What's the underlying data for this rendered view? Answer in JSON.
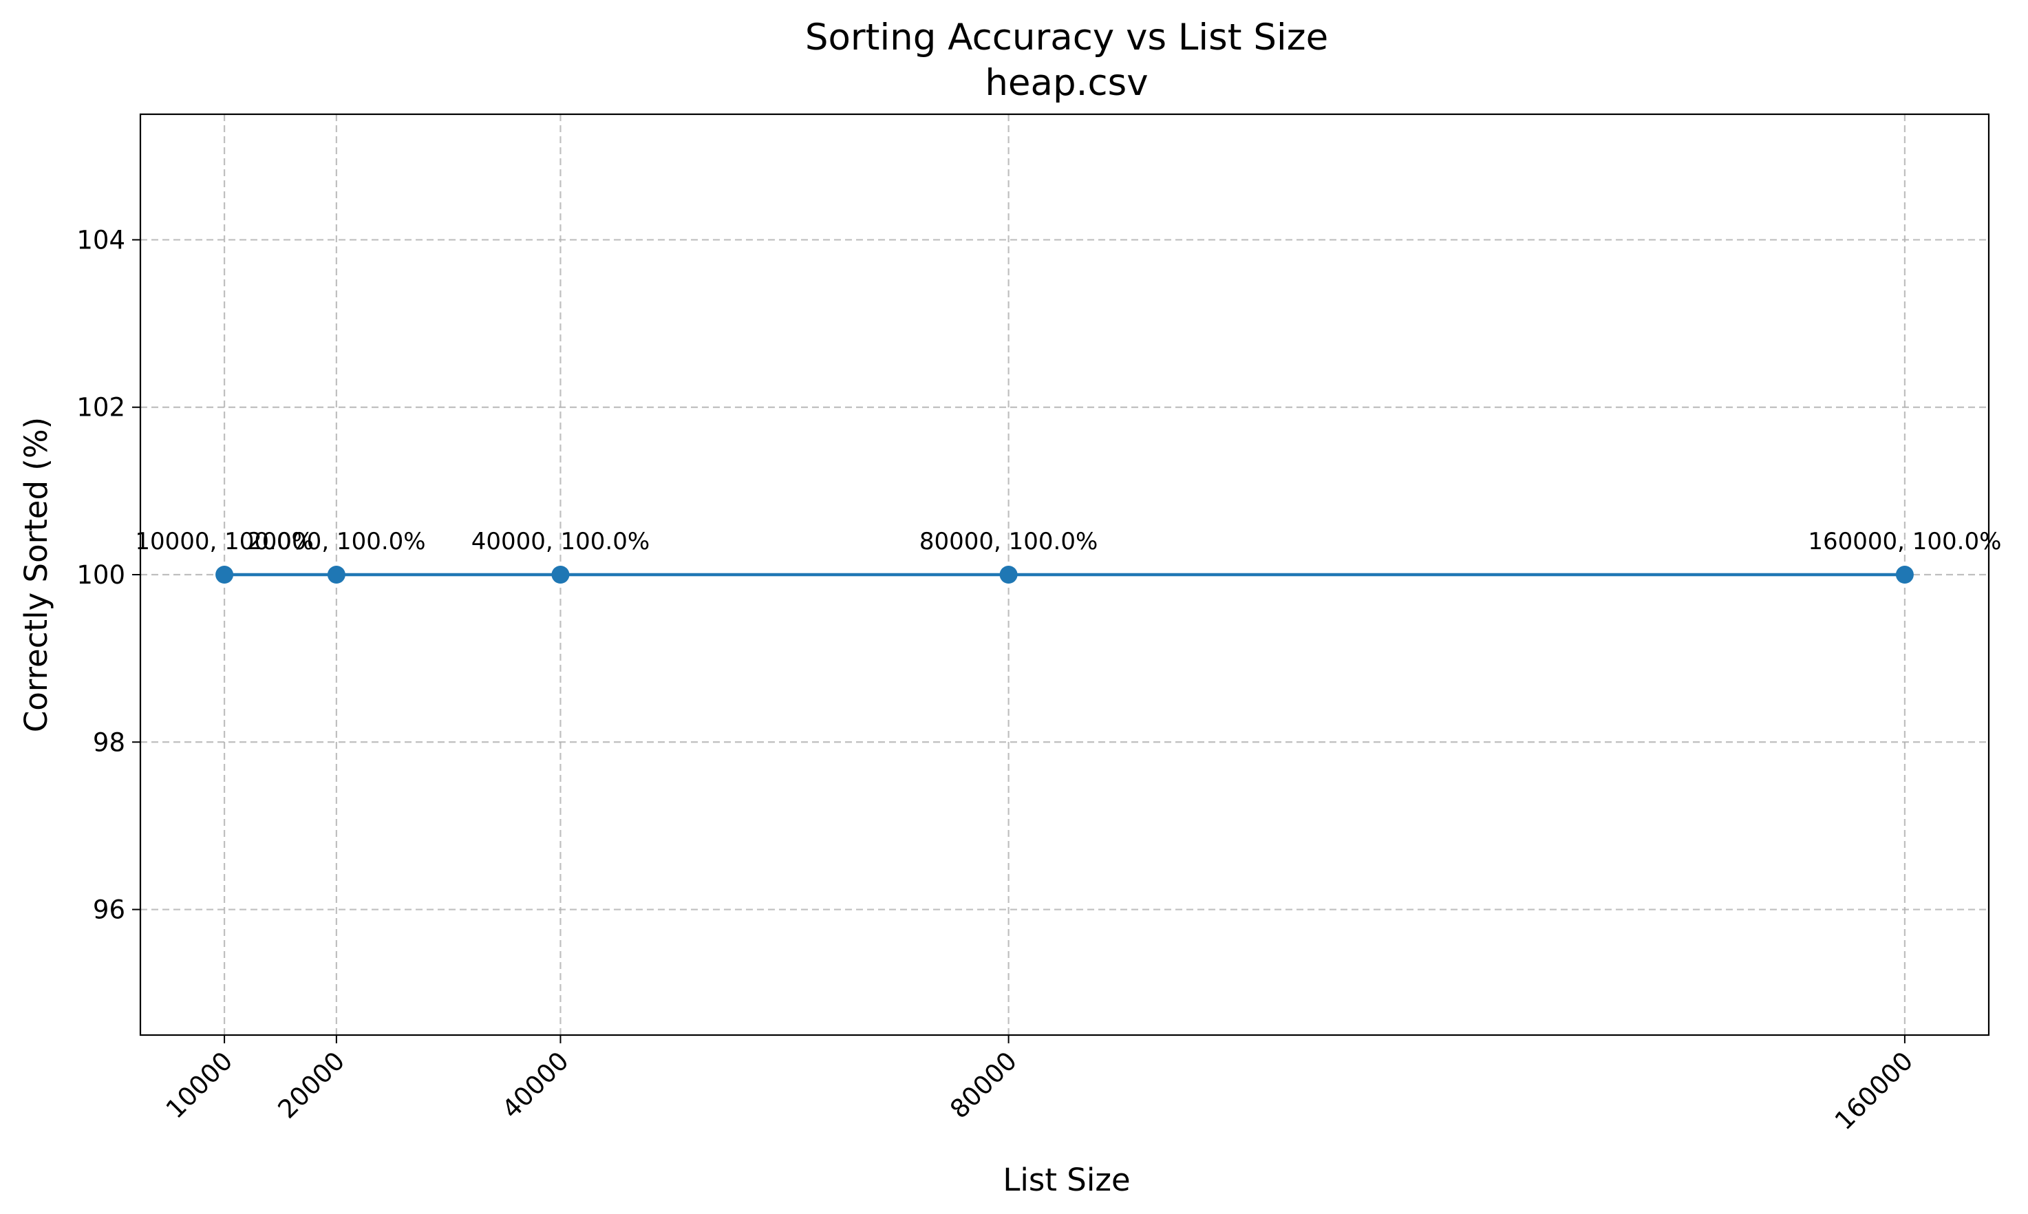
{
  "chart_data": {
    "type": "line",
    "title": "Sorting Accuracy vs List Size",
    "subtitle": "heap.csv",
    "xlabel": "List Size",
    "ylabel": "Correctly Sorted (%)",
    "x": [
      10000,
      20000,
      40000,
      80000,
      160000
    ],
    "series": [
      {
        "values": [
          100.0,
          100.0,
          100.0,
          100.0,
          100.0
        ],
        "color": "#1f77b4"
      }
    ],
    "data_labels": [
      "10000, 100.0%",
      "20000, 100.0%",
      "40000, 100.0%",
      "80000, 100.0%",
      "160000, 100.0%"
    ],
    "xticks": [
      10000,
      20000,
      40000,
      80000,
      160000
    ],
    "yticks": [
      96,
      98,
      100,
      102,
      104
    ],
    "xlim": [
      2500,
      167500
    ],
    "ylim": [
      94.5,
      105.5
    ],
    "grid": true
  }
}
